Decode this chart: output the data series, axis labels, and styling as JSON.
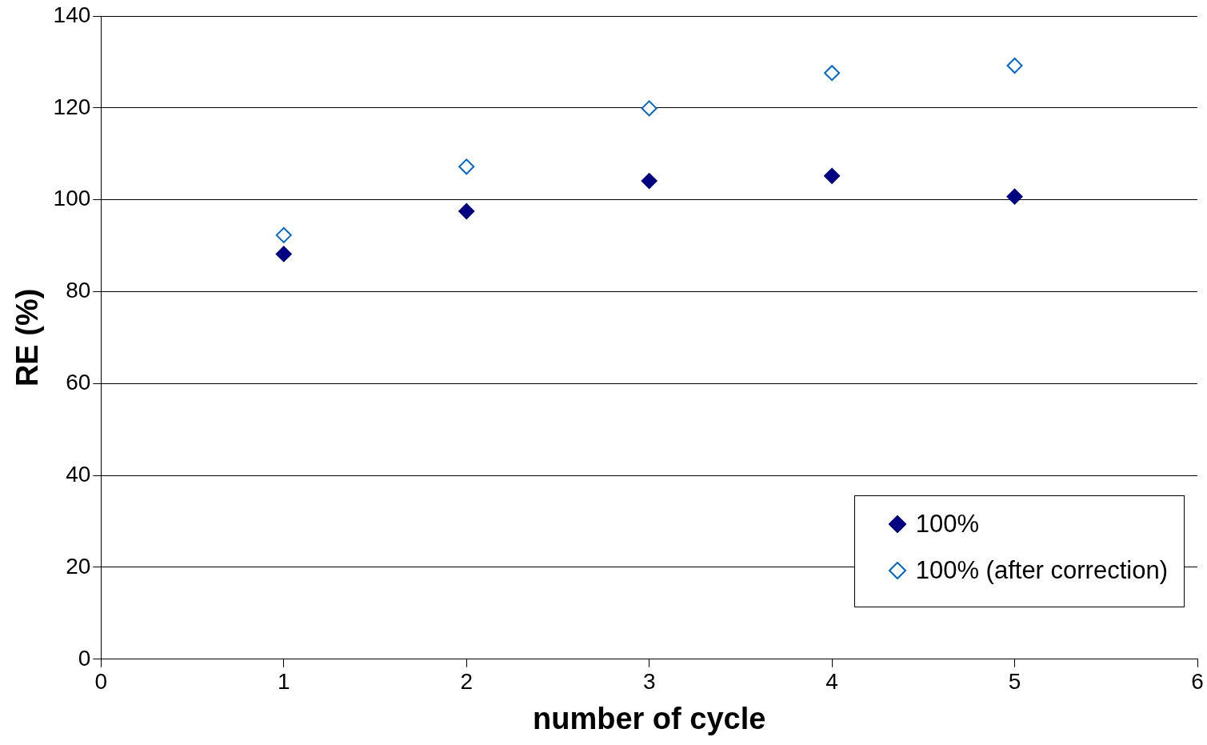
{
  "chart_data": {
    "type": "scatter",
    "xlabel": "number of cycle",
    "ylabel": "RE (%)",
    "x": [
      1,
      2,
      3,
      4,
      5
    ],
    "series": [
      {
        "name": "100%",
        "color": "#000080",
        "values": [
          88.2,
          97.5,
          104.1,
          105.2,
          100.7
        ]
      },
      {
        "name": "100% (after correction)",
        "color": "#0066cc",
        "values": [
          92.3,
          107.2,
          119.9,
          127.6,
          129.2
        ]
      }
    ],
    "xlim": [
      0,
      6
    ],
    "xticks": [
      0,
      1,
      2,
      3,
      4,
      5,
      6
    ],
    "ylim": [
      0,
      140
    ],
    "yticks": [
      0,
      20,
      40,
      60,
      80,
      100,
      120,
      140
    ],
    "grid": "y",
    "legend": "bottom right",
    "marker": "diamond"
  }
}
